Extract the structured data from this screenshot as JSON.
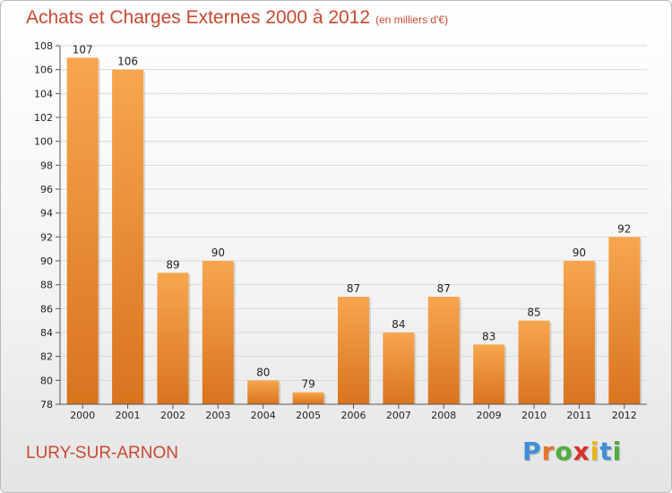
{
  "header": {
    "title": "Achats et Charges Externes 2000 à 2012",
    "unit": "(en milliers d'€)"
  },
  "footer": {
    "commune": "LURY-SUR-ARNON"
  },
  "logo": {
    "letters": [
      "P",
      "r",
      "o",
      "x",
      "i",
      "t",
      "i"
    ],
    "colors": [
      "#3d8fd8",
      "#e6762a",
      "#4fae3c",
      "#d8322a",
      "#e9b71c",
      "#3d8fd8",
      "#4fae3c"
    ]
  },
  "colors": {
    "bar_light": "#f7a64f",
    "bar_dark": "#d9741d",
    "title": "#c8492f"
  },
  "chart_data": {
    "type": "bar",
    "title": "Achats et Charges Externes 2000 à 2012",
    "subtitle": "(en milliers d'€)",
    "categories": [
      "2000",
      "2001",
      "2002",
      "2003",
      "2004",
      "2005",
      "2006",
      "2007",
      "2008",
      "2009",
      "2010",
      "2011",
      "2012"
    ],
    "values": [
      107,
      106,
      89,
      90,
      80,
      79,
      87,
      84,
      87,
      83,
      85,
      90,
      92
    ],
    "ylim": [
      78,
      108
    ],
    "yticks": [
      78,
      80,
      82,
      84,
      86,
      88,
      90,
      92,
      94,
      96,
      98,
      100,
      102,
      104,
      106,
      108
    ],
    "grid": true,
    "legend": "none"
  }
}
